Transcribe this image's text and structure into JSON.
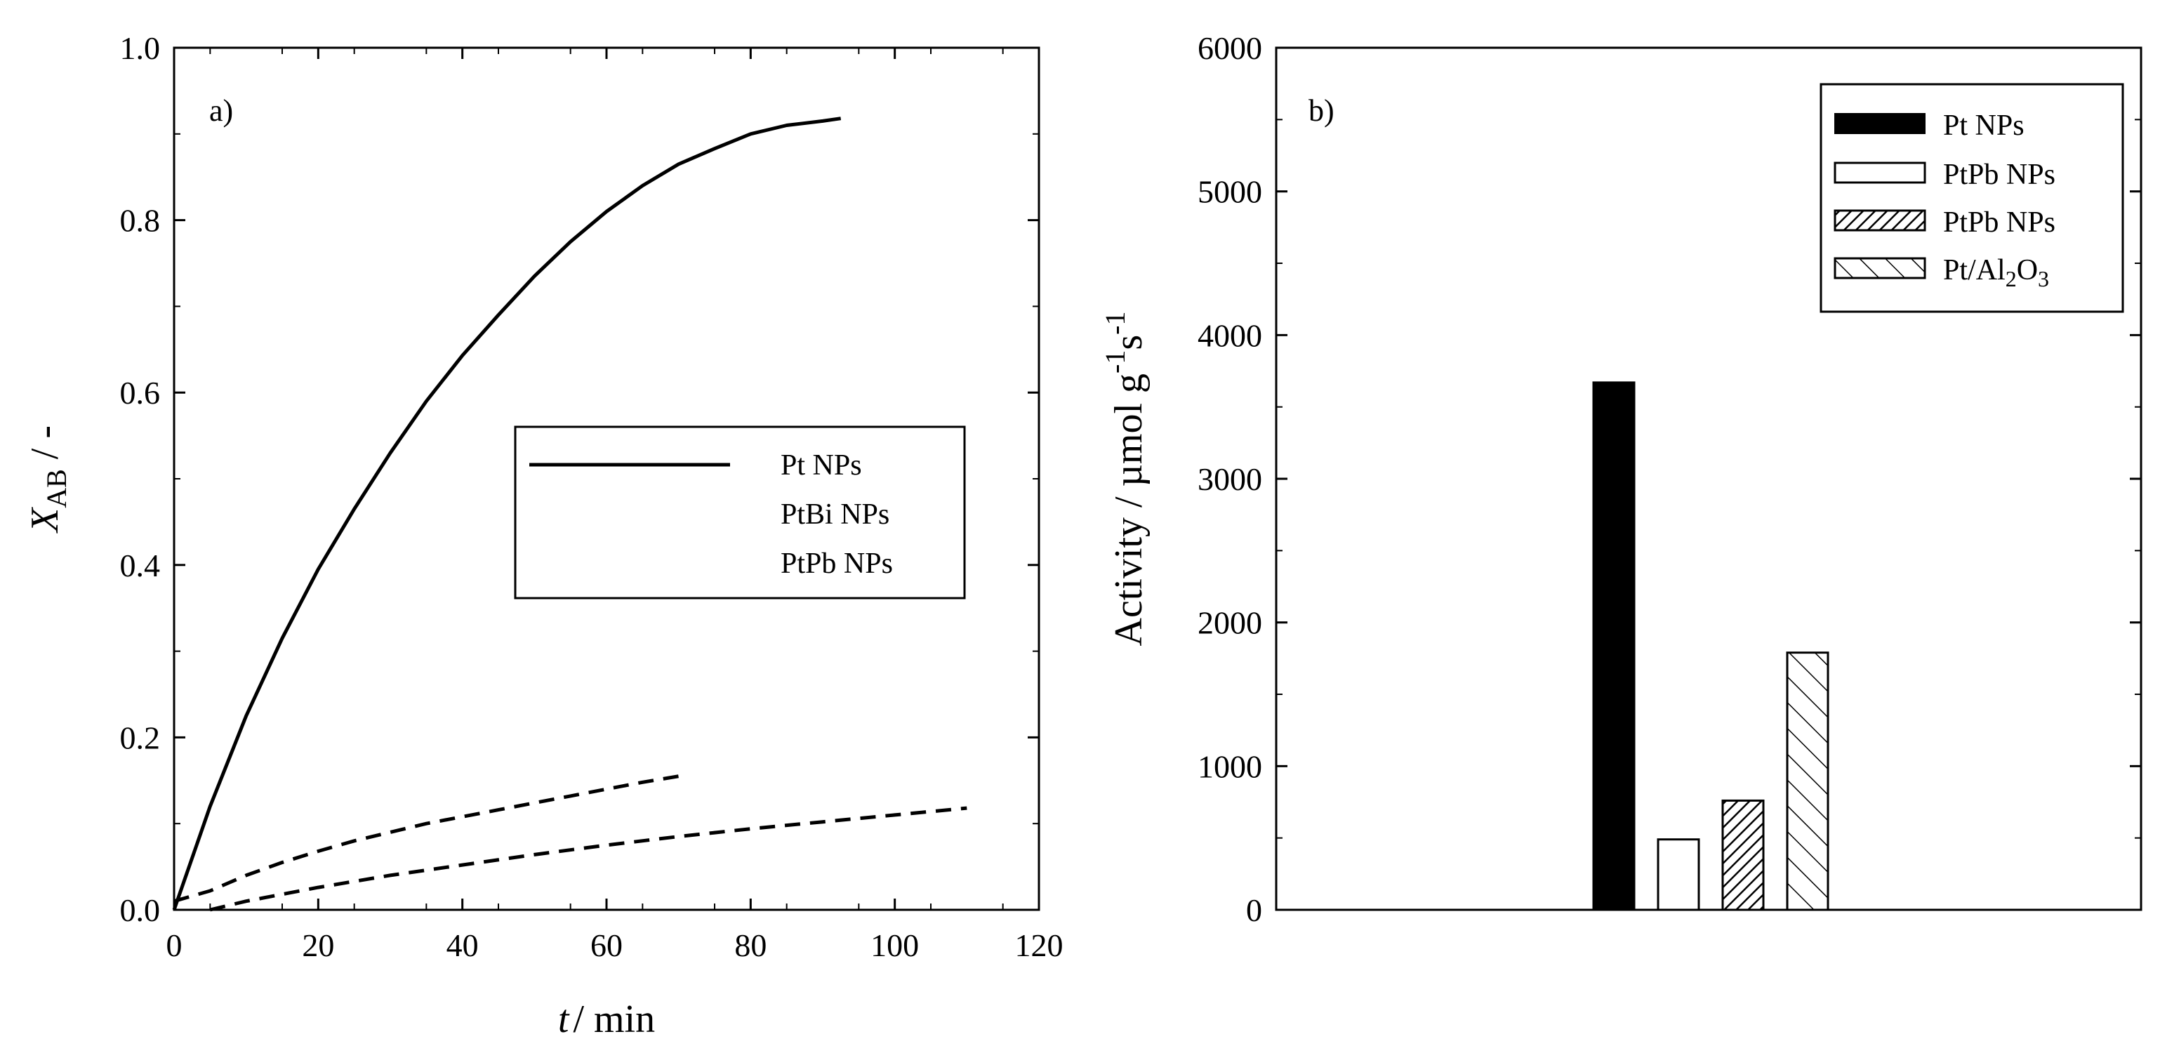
{
  "chart_data": [
    {
      "type": "line",
      "panel_label": "a)",
      "xlabel_italic": "t",
      "xlabel_rest": "/ min",
      "ylabel_main": "X",
      "ylabel_sub": "AB",
      "ylabel_rest": " / -",
      "xlim": [
        0,
        120
      ],
      "ylim": [
        0,
        1.0
      ],
      "xticks": [
        0,
        20,
        40,
        60,
        80,
        100,
        120
      ],
      "xtick_labels": [
        "0",
        "20",
        "40",
        "60",
        "80",
        "100",
        "120"
      ],
      "yticks": [
        0,
        0.2,
        0.4,
        0.6,
        0.8,
        1.0
      ],
      "ytick_labels": [
        "0.0",
        "0.2",
        "0.4",
        "0.6",
        "0.8",
        "1.0"
      ],
      "legend_position": "center-right",
      "series": [
        {
          "name": "Pt NPs",
          "style": "solid",
          "x": [
            0,
            5,
            10,
            15,
            20,
            25,
            30,
            35,
            40,
            45,
            50,
            55,
            60,
            65,
            70,
            75,
            80,
            85,
            90,
            92.5
          ],
          "y": [
            0,
            0.12,
            0.225,
            0.315,
            0.395,
            0.465,
            0.53,
            0.59,
            0.643,
            0.69,
            0.735,
            0.775,
            0.81,
            0.84,
            0.865,
            0.883,
            0.9,
            0.91,
            0.915,
            0.918
          ]
        },
        {
          "name": "PtBi NPs",
          "style": "dashed",
          "x": [
            0,
            5,
            10,
            15,
            20,
            25,
            30,
            35,
            40,
            45,
            50,
            55,
            60,
            65,
            70
          ],
          "y": [
            0.01,
            0.022,
            0.04,
            0.055,
            0.068,
            0.08,
            0.09,
            0.1,
            0.108,
            0.116,
            0.124,
            0.132,
            0.14,
            0.148,
            0.155
          ]
        },
        {
          "name": "PtPb NPs",
          "style": "dashed",
          "x": [
            5,
            10,
            15,
            20,
            30,
            40,
            50,
            60,
            70,
            80,
            90,
            100,
            110
          ],
          "y": [
            0.0,
            0.01,
            0.018,
            0.026,
            0.04,
            0.052,
            0.064,
            0.075,
            0.085,
            0.094,
            0.102,
            0.11,
            0.118
          ]
        }
      ]
    },
    {
      "type": "bar",
      "panel_label": "b)",
      "ylabel": "Activity / µmol g",
      "ylabel_sup1": "-1",
      "ylabel_mid": "s",
      "ylabel_sup2": "-1",
      "ylim": [
        0,
        6000
      ],
      "yticks": [
        0,
        1000,
        2000,
        3000,
        4000,
        5000,
        6000
      ],
      "ytick_labels": [
        "0",
        "1000",
        "2000",
        "3000",
        "4000",
        "5000",
        "6000"
      ],
      "legend_position": "top-right",
      "bars": [
        {
          "name": "Pt NPs",
          "value": 3670,
          "fill": "solid"
        },
        {
          "name": "PtPb NPs",
          "value": 490,
          "fill": "open"
        },
        {
          "name": "PtPb NPs",
          "value": 760,
          "fill": "crosshatch"
        },
        {
          "name": "Pt/Al2O3",
          "legend_base": "Pt/Al",
          "legend_sub1": "2",
          "legend_mid": "O",
          "legend_sub2": "3",
          "value": 1790,
          "fill": "diagonal"
        }
      ]
    }
  ]
}
